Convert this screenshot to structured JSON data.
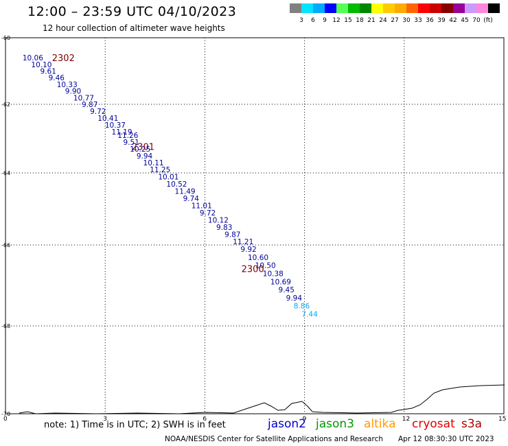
{
  "header": {
    "title": "12:00 – 23:59 UTC 04/10/2023",
    "subtitle": "12 hour collection of altimeter wave heights"
  },
  "legend": {
    "colors": [
      "#808080",
      "#00e5ff",
      "#00aaff",
      "#0000ff",
      "#55ff55",
      "#00bb00",
      "#008800",
      "#ffff00",
      "#ffcc00",
      "#ffaa00",
      "#ff6600",
      "#ff0000",
      "#cc0000",
      "#880000",
      "#990099",
      "#cc99ff",
      "#ff88dd",
      "#000000"
    ],
    "labels": [
      "3",
      "6",
      "9",
      "12",
      "15",
      "18",
      "21",
      "24",
      "27",
      "30",
      "33",
      "36",
      "39",
      "42",
      "45",
      "70"
    ],
    "unit": "(ft)"
  },
  "axes": {
    "x_ticks": [
      "0",
      "3",
      "6",
      "9",
      "12",
      "15"
    ],
    "y_ticks": [
      "-60",
      "-62",
      "-64",
      "-66",
      "-68",
      "-70"
    ]
  },
  "track_labels": [
    {
      "text": "2302",
      "lon": 1.4,
      "lat": -60.62
    },
    {
      "text": "2301",
      "lon": 3.8,
      "lat": -63.25
    },
    {
      "text": "2300",
      "lon": 7.1,
      "lat": -66.6
    }
  ],
  "observations": [
    {
      "lon": 0.72,
      "lat": -60.62,
      "v": "10.06",
      "color": "#000099"
    },
    {
      "lon": 0.98,
      "lat": -60.82,
      "v": "10.10",
      "color": "#000099"
    },
    {
      "lon": 1.25,
      "lat": -61.02,
      "v": "9.61",
      "color": "#000099"
    },
    {
      "lon": 1.5,
      "lat": -61.22,
      "v": "9.46",
      "color": "#000099"
    },
    {
      "lon": 1.75,
      "lat": -61.42,
      "v": "10.33",
      "color": "#000099"
    },
    {
      "lon": 2.0,
      "lat": -61.62,
      "v": "9.90",
      "color": "#000099"
    },
    {
      "lon": 2.25,
      "lat": -61.82,
      "v": "10.77",
      "color": "#000099"
    },
    {
      "lon": 2.5,
      "lat": -62.02,
      "v": "9.87",
      "color": "#000099"
    },
    {
      "lon": 2.75,
      "lat": -62.22,
      "v": "9.72",
      "color": "#000099"
    },
    {
      "lon": 2.98,
      "lat": -62.42,
      "v": "10.41",
      "color": "#000099"
    },
    {
      "lon": 3.2,
      "lat": -62.62,
      "v": "10.37",
      "color": "#000099"
    },
    {
      "lon": 3.4,
      "lat": -62.82,
      "v": "11.19",
      "color": "#000099"
    },
    {
      "lon": 3.58,
      "lat": -62.92,
      "v": "11.26",
      "color": "#000099"
    },
    {
      "lon": 3.75,
      "lat": -63.12,
      "v": "9.51",
      "color": "#000099"
    },
    {
      "lon": 3.95,
      "lat": -63.32,
      "v": "10.25",
      "color": "#000099"
    },
    {
      "lon": 4.15,
      "lat": -63.52,
      "v": "9.94",
      "color": "#000099"
    },
    {
      "lon": 4.35,
      "lat": -63.72,
      "v": "10.11",
      "color": "#000099"
    },
    {
      "lon": 4.55,
      "lat": -63.92,
      "v": "11.25",
      "color": "#000099"
    },
    {
      "lon": 4.8,
      "lat": -64.12,
      "v": "10.01",
      "color": "#000099"
    },
    {
      "lon": 5.05,
      "lat": -64.32,
      "v": "10.52",
      "color": "#000099"
    },
    {
      "lon": 5.3,
      "lat": -64.52,
      "v": "11.49",
      "color": "#000099"
    },
    {
      "lon": 5.55,
      "lat": -64.72,
      "v": "9.74",
      "color": "#000099"
    },
    {
      "lon": 5.8,
      "lat": -64.92,
      "v": "11.01",
      "color": "#000099"
    },
    {
      "lon": 6.05,
      "lat": -65.12,
      "v": "9.72",
      "color": "#000099"
    },
    {
      "lon": 6.3,
      "lat": -65.32,
      "v": "10.12",
      "color": "#000099"
    },
    {
      "lon": 6.55,
      "lat": -65.52,
      "v": "9.83",
      "color": "#000099"
    },
    {
      "lon": 6.8,
      "lat": -65.72,
      "v": "9.87",
      "color": "#000099"
    },
    {
      "lon": 7.05,
      "lat": -65.92,
      "v": "11.21",
      "color": "#000099"
    },
    {
      "lon": 7.28,
      "lat": -66.12,
      "v": "9.92",
      "color": "#000099"
    },
    {
      "lon": 7.5,
      "lat": -66.32,
      "v": "10.60",
      "color": "#000099"
    },
    {
      "lon": 7.72,
      "lat": -66.52,
      "v": "10.50",
      "color": "#000099"
    },
    {
      "lon": 7.95,
      "lat": -66.72,
      "v": "10.38",
      "color": "#000099"
    },
    {
      "lon": 8.18,
      "lat": -66.92,
      "v": "10.69",
      "color": "#000099"
    },
    {
      "lon": 8.42,
      "lat": -67.12,
      "v": "9.45",
      "color": "#000099"
    },
    {
      "lon": 8.65,
      "lat": -67.32,
      "v": "9.94",
      "color": "#000099"
    },
    {
      "lon": 8.88,
      "lat": -67.52,
      "v": "8.86",
      "color": "#00aaff"
    },
    {
      "lon": 9.12,
      "lat": -67.72,
      "v": "7.44",
      "color": "#00aaff"
    }
  ],
  "footer": {
    "note": "note:  1) Time is in UTC;  2) SWH is in feet",
    "satellites": [
      {
        "name": "jason2",
        "color": "#0000cc"
      },
      {
        "name": "jason3",
        "color": "#009900"
      },
      {
        "name": "altika",
        "color": "#ff9900"
      },
      {
        "name": "cryosat",
        "color": "#dd0000"
      },
      {
        "name": "s3a",
        "color": "#aa0000"
      }
    ],
    "credit": "NOAA/NESDIS Center for Satellite Applications and Research",
    "timestamp": "Apr 12 08:30:30 UTC 2023"
  }
}
